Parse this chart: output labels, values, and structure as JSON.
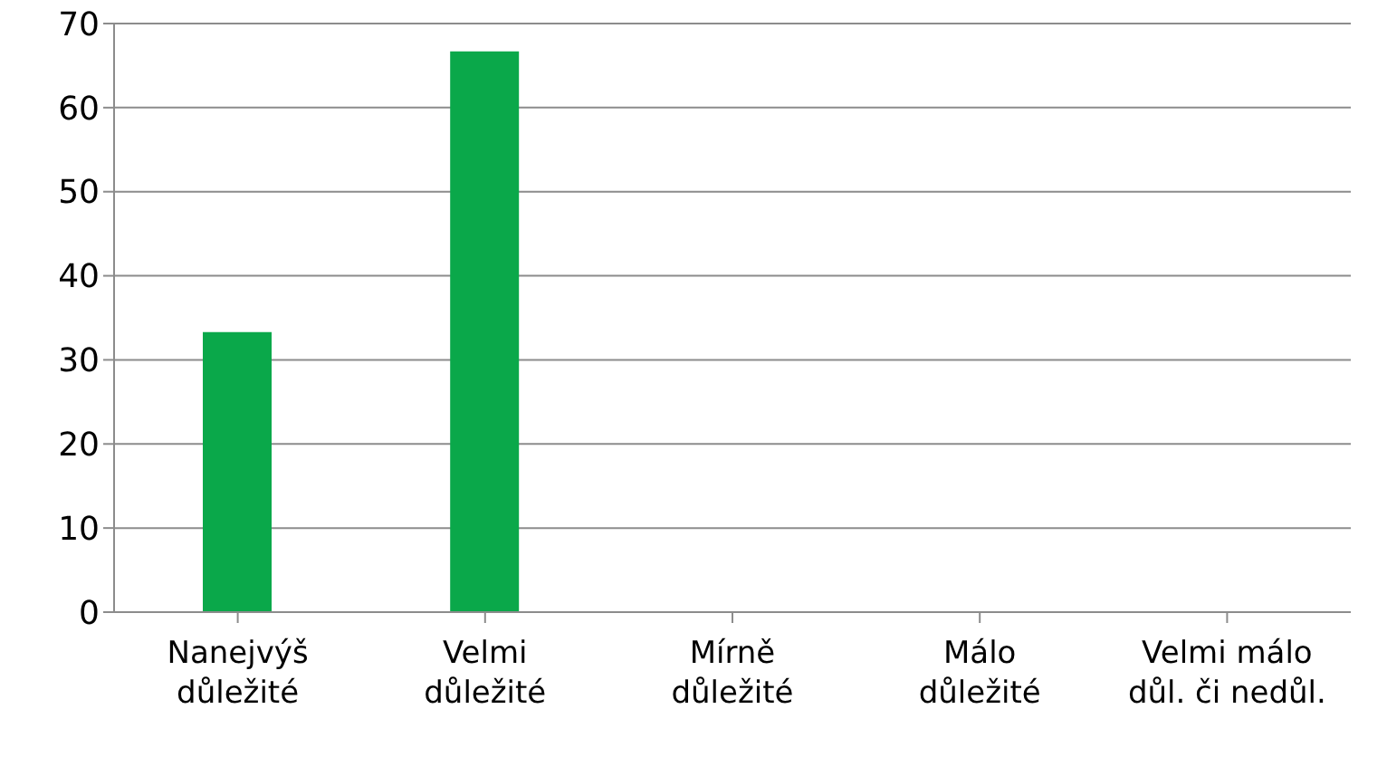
{
  "chart_data": {
    "type": "bar",
    "categories": [
      "Nanejvýš\ndůležité",
      "Velmi\ndůležité",
      "Mírně\ndůležité",
      "Málo\ndůležité",
      "Velmi málo\ndůl. či nedůl."
    ],
    "values": [
      33.3,
      66.7,
      0,
      0,
      0
    ],
    "color": "#0aa84a",
    "ylim": [
      0,
      70
    ],
    "yticks": [
      0,
      10,
      20,
      30,
      40,
      50,
      60,
      70
    ],
    "grid": "y"
  }
}
